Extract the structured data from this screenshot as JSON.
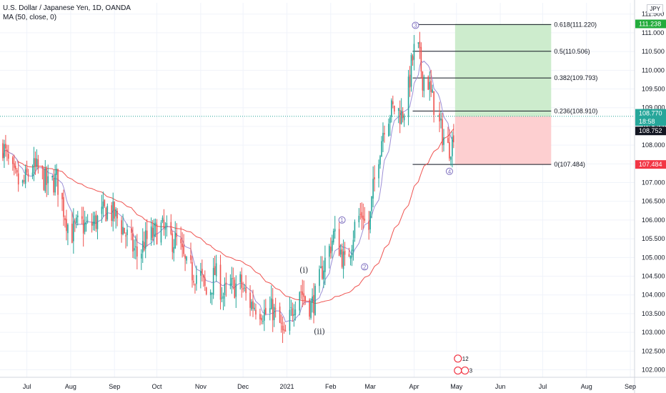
{
  "header": {
    "symbol_title": "U.S. Dollar / Japanese Yen, 1D, OANDA",
    "indicator": "MA (50, close, 0)",
    "currency": "JPY"
  },
  "colors": {
    "up": "#26a69a",
    "down": "#ef5350",
    "ma": "#ef5350",
    "short_ma": "#9c8fd6",
    "profit_zone": "#cdeccd",
    "loss_zone": "#fdcfd0",
    "current_price": "#26a69a",
    "stop_tag": "#f23645",
    "target_tag": "#22ab3b"
  },
  "chart_data": {
    "type": "candlestick",
    "title": "U.S. Dollar / Japanese Yen, 1D, OANDA",
    "ylim": [
      101.8,
      111.8
    ],
    "y_ticks": [
      102.0,
      102.5,
      103.0,
      103.5,
      104.0,
      104.5,
      105.0,
      105.5,
      106.0,
      106.5,
      107.0,
      107.5,
      108.0,
      108.5,
      109.0,
      109.5,
      110.0,
      110.5,
      111.0,
      111.5
    ],
    "y_tick_labels": [
      "102.000",
      "102.500",
      "103.000",
      "103.500",
      "104.000",
      "104.500",
      "105.000",
      "105.500",
      "106.000",
      "106.500",
      "107.000",
      "107.500",
      "108.000",
      "108.500",
      "109.000",
      "109.500",
      "110.000",
      "110.500",
      "111.000",
      "111.500"
    ],
    "x_labels": [
      "Jul",
      "Aug",
      "Sep",
      "Oct",
      "Nov",
      "Dec",
      "2021",
      "Feb",
      "Mar",
      "Apr",
      "May",
      "Jun",
      "Jul",
      "Aug",
      "Sep"
    ],
    "x_label_days": [
      17,
      48,
      79,
      109,
      140,
      170,
      201,
      232,
      260,
      291,
      321,
      352,
      382,
      413,
      444
    ],
    "anchors": [
      {
        "day": 0,
        "price": 108.0
      },
      {
        "day": 3,
        "price": 107.6
      },
      {
        "day": 8,
        "price": 107.1
      },
      {
        "day": 14,
        "price": 106.9
      },
      {
        "day": 20,
        "price": 107.4
      },
      {
        "day": 26,
        "price": 107.3
      },
      {
        "day": 32,
        "price": 106.9
      },
      {
        "day": 38,
        "price": 107.1
      },
      {
        "day": 43,
        "price": 106.3
      },
      {
        "day": 48,
        "price": 105.6
      },
      {
        "day": 54,
        "price": 105.9
      },
      {
        "day": 60,
        "price": 105.8
      },
      {
        "day": 67,
        "price": 106.0
      },
      {
        "day": 74,
        "price": 106.3
      },
      {
        "day": 82,
        "price": 106.0
      },
      {
        "day": 90,
        "price": 105.4
      },
      {
        "day": 96,
        "price": 105.0
      },
      {
        "day": 100,
        "price": 105.4
      },
      {
        "day": 106,
        "price": 105.6
      },
      {
        "day": 112,
        "price": 105.8
      },
      {
        "day": 118,
        "price": 105.5
      },
      {
        "day": 124,
        "price": 105.4
      },
      {
        "day": 130,
        "price": 104.7
      },
      {
        "day": 134,
        "price": 104.6
      },
      {
        "day": 140,
        "price": 104.5
      },
      {
        "day": 145,
        "price": 103.9
      },
      {
        "day": 150,
        "price": 104.6
      },
      {
        "day": 156,
        "price": 104.0
      },
      {
        "day": 162,
        "price": 104.2
      },
      {
        "day": 168,
        "price": 104.3
      },
      {
        "day": 174,
        "price": 103.8
      },
      {
        "day": 180,
        "price": 103.7
      },
      {
        "day": 186,
        "price": 103.5
      },
      {
        "day": 191,
        "price": 103.6
      },
      {
        "day": 196,
        "price": 103.2
      },
      {
        "day": 199,
        "price": 102.8
      },
      {
        "day": 202,
        "price": 103.2
      },
      {
        "day": 206,
        "price": 103.8
      },
      {
        "day": 210,
        "price": 104.2
      },
      {
        "day": 214,
        "price": 103.9
      },
      {
        "day": 218,
        "price": 103.7
      },
      {
        "day": 222,
        "price": 104.0
      },
      {
        "day": 226,
        "price": 104.7
      },
      {
        "day": 230,
        "price": 105.1
      },
      {
        "day": 234,
        "price": 105.6
      },
      {
        "day": 238,
        "price": 105.3
      },
      {
        "day": 242,
        "price": 104.8
      },
      {
        "day": 246,
        "price": 105.3
      },
      {
        "day": 250,
        "price": 106.0
      },
      {
        "day": 255,
        "price": 106.2
      },
      {
        "day": 258,
        "price": 105.4
      },
      {
        "day": 262,
        "price": 106.8
      },
      {
        "day": 266,
        "price": 107.8
      },
      {
        "day": 270,
        "price": 108.6
      },
      {
        "day": 274,
        "price": 108.9
      },
      {
        "day": 278,
        "price": 109.0
      },
      {
        "day": 282,
        "price": 108.8
      },
      {
        "day": 286,
        "price": 109.2
      },
      {
        "day": 289,
        "price": 110.1
      },
      {
        "day": 292,
        "price": 110.7
      },
      {
        "day": 294,
        "price": 110.5
      },
      {
        "day": 297,
        "price": 109.8
      },
      {
        "day": 300,
        "price": 109.9
      },
      {
        "day": 303,
        "price": 109.3
      },
      {
        "day": 306,
        "price": 109.0
      },
      {
        "day": 309,
        "price": 108.5
      },
      {
        "day": 312,
        "price": 108.2
      },
      {
        "day": 315,
        "price": 107.9
      },
      {
        "day": 318,
        "price": 108.1
      },
      {
        "day": 320,
        "price": 108.7
      }
    ],
    "fib_levels": [
      {
        "label": "0.618(111.220)",
        "price": 111.22
      },
      {
        "label": "0.5(110.506)",
        "price": 110.506
      },
      {
        "label": "0.382(109.793)",
        "price": 109.793
      },
      {
        "label": "0.236(108.910)",
        "price": 108.91
      },
      {
        "label": "0(107.484)",
        "price": 107.484
      }
    ],
    "fib_start_day": 290,
    "fib_end_day": 388,
    "position": {
      "start_day": 320,
      "end_day": 388,
      "entry": 108.77,
      "target": 111.238,
      "stop": 107.484
    },
    "wave_labels": [
      {
        "text": "(i)",
        "day": 213,
        "price": 104.6
      },
      {
        "text": "(ii)",
        "day": 224,
        "price": 102.95
      }
    ],
    "wave_circles": [
      {
        "text": "1",
        "day": 240,
        "price": 106.0
      },
      {
        "text": "2",
        "day": 256,
        "price": 104.75
      },
      {
        "text": "3",
        "day": 292,
        "price": 111.2
      },
      {
        "text": "4",
        "day": 316,
        "price": 107.3
      }
    ],
    "price_tags": [
      {
        "text": "111.238",
        "price": 111.238,
        "kind": "target"
      },
      {
        "text": "108.770",
        "price": 108.85,
        "kind": "current"
      },
      {
        "text": "18:58",
        "price": 108.63,
        "kind": "current"
      },
      {
        "text": "108.752",
        "price": 108.38,
        "kind": "ma"
      },
      {
        "text": "107.484",
        "price": 107.484,
        "kind": "stop"
      }
    ],
    "event_marks": [
      {
        "text": "12",
        "day": 322,
        "price": 102.3
      },
      {
        "text": "2",
        "day": 322,
        "price": 101.98
      },
      {
        "text": "3",
        "day": 327,
        "price": 101.98
      }
    ]
  }
}
